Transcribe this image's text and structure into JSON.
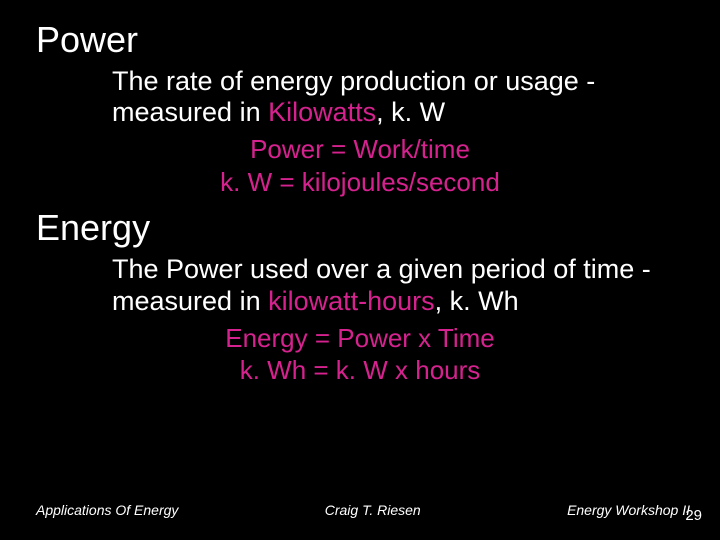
{
  "colors": {
    "background": "#000000",
    "text": "#ffffff",
    "highlight": "#d6228f"
  },
  "typography": {
    "heading_fontsize": 36,
    "body_fontsize": 27,
    "formula_fontsize": 26,
    "footer_fontsize": 14,
    "pagenum_fontsize": 15,
    "font_family": "Arial"
  },
  "power": {
    "heading": "Power",
    "desc_pre": "The rate of energy production or usage - measured in ",
    "desc_hl": "Kilowatts",
    "desc_post": ", k. W",
    "formula1": "Power = Work/time",
    "formula2": "k. W = kilojoules/second"
  },
  "energy": {
    "heading": "Energy",
    "desc_pre": "The Power used over a given period of time - measured in ",
    "desc_hl": "kilowatt-hours",
    "desc_post": ", k. Wh",
    "formula1": "Energy = Power x Time",
    "formula2": "k. Wh = k. W x hours"
  },
  "footer": {
    "left": "Applications Of Energy",
    "center": "Craig T. Riesen",
    "right": "Energy Workshop II"
  },
  "page_number": "29"
}
